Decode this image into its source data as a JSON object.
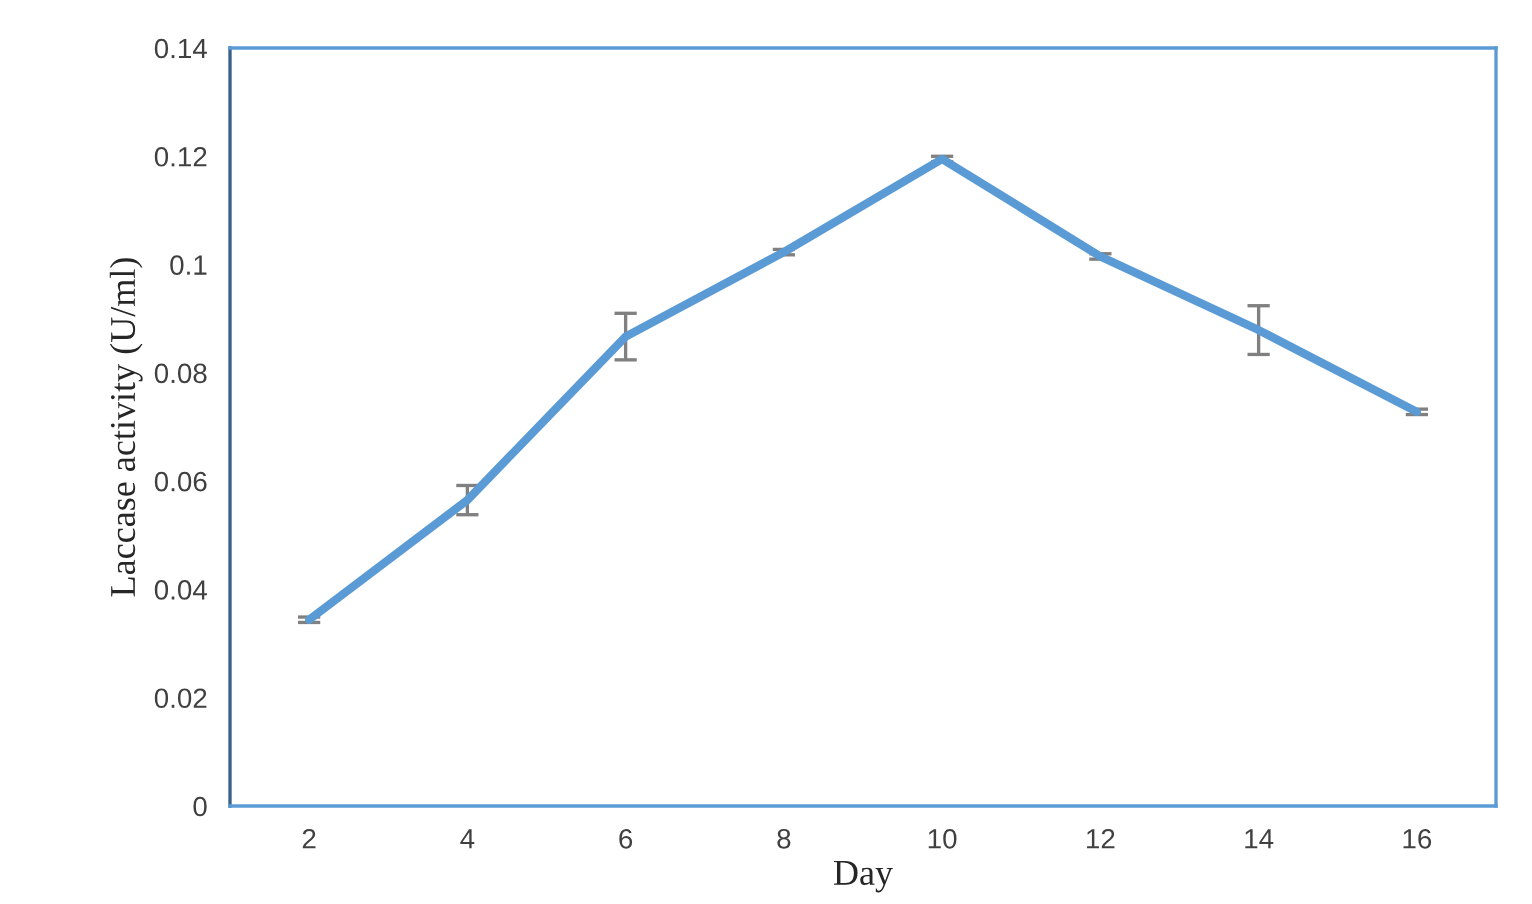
{
  "chart_data": {
    "type": "line",
    "xlabel": "Day",
    "ylabel": "Laccase activity (U/ml)",
    "categories": [
      "2",
      "4",
      "6",
      "8",
      "10",
      "12",
      "14",
      "16"
    ],
    "series": [
      {
        "color": "#5b9bd5",
        "values": [
          0.0344,
          0.0565,
          0.0867,
          0.1023,
          0.1195,
          0.1015,
          0.0879,
          0.0728
        ],
        "errors": [
          0.0005,
          0.0027,
          0.0043,
          0.0005,
          0.0005,
          0.0005,
          0.0045,
          0.0005
        ]
      }
    ],
    "ylim": [
      0,
      0.14
    ],
    "yticks": [
      0,
      0.02,
      0.04,
      0.06,
      0.08,
      0.1,
      0.12,
      0.14
    ],
    "grid": false,
    "legend": false,
    "marker": "none",
    "line_style": "solid"
  }
}
